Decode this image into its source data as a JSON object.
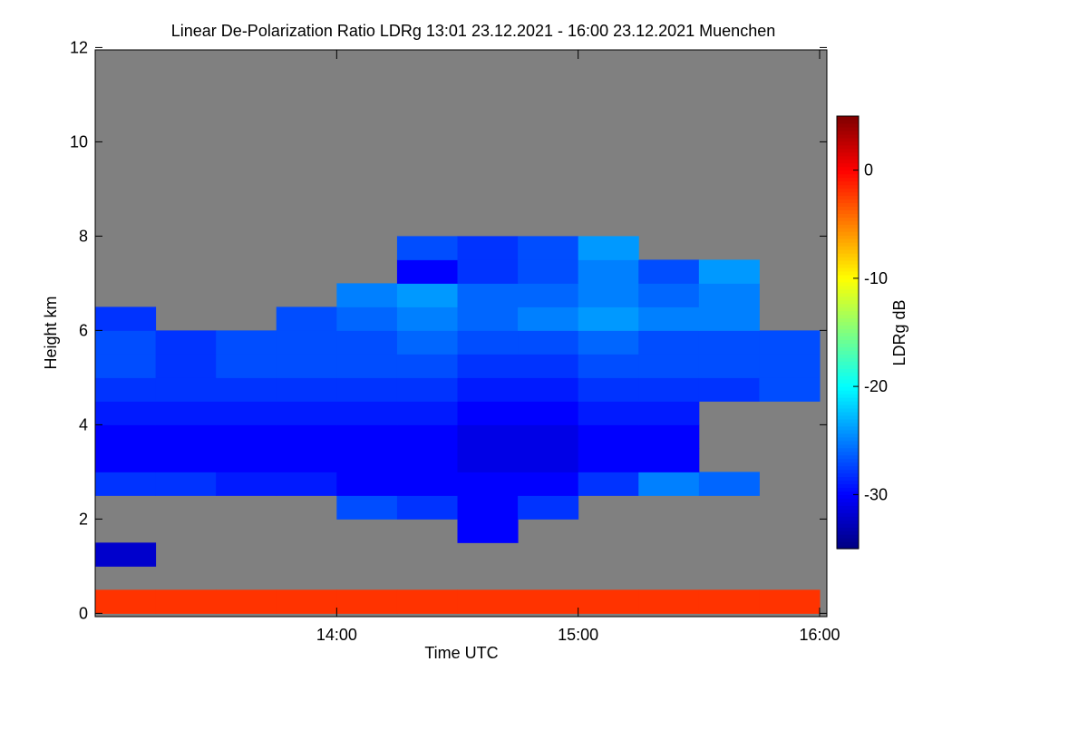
{
  "chart_data": {
    "type": "heatmap",
    "title": "Linear De-Polarization Ratio LDRg   13:01 23.12.2021 - 16:00 23.12.2021 Muenchen",
    "xlabel": "Time UTC",
    "ylabel": "Height km",
    "background": "#808080",
    "x": [
      13.125,
      13.375,
      13.625,
      13.875,
      14.125,
      14.375,
      14.625,
      14.875,
      15.125,
      15.375,
      15.625,
      15.875
    ],
    "y": [
      0.25,
      0.75,
      1.25,
      1.75,
      2.25,
      2.75,
      3.25,
      3.75,
      4.25,
      4.75,
      5.25,
      5.75,
      6.25,
      6.75,
      7.25,
      7.75
    ],
    "values": [
      [
        -2,
        -2,
        -2,
        -2,
        -2,
        -2,
        -2,
        -2,
        -2,
        -2,
        -2,
        -2
      ],
      [
        null,
        null,
        null,
        null,
        null,
        null,
        null,
        null,
        null,
        null,
        null,
        null
      ],
      [
        -32,
        null,
        null,
        null,
        null,
        null,
        null,
        null,
        null,
        null,
        null,
        null
      ],
      [
        null,
        null,
        null,
        null,
        null,
        null,
        -30,
        null,
        null,
        null,
        null,
        null
      ],
      [
        null,
        null,
        null,
        null,
        -27,
        -28,
        -30,
        -28,
        null,
        null,
        null,
        null
      ],
      [
        -28,
        -28,
        -29,
        -29,
        -30,
        -30,
        -30,
        -30,
        -28,
        -25,
        -26,
        null
      ],
      [
        -30,
        -30,
        -30,
        -30,
        -30,
        -30,
        -31,
        -31,
        -30,
        -30,
        null,
        null
      ],
      [
        -30,
        -30,
        -30,
        -30,
        -30,
        -30,
        -31,
        -31,
        -30,
        -30,
        null,
        null
      ],
      [
        -29,
        -29,
        -29,
        -29,
        -29,
        -29,
        -30,
        -30,
        -29,
        -29,
        null,
        null
      ],
      [
        -28,
        -28,
        -28,
        -28,
        -28,
        -28,
        -29,
        -29,
        -28,
        -28,
        -28,
        -27
      ],
      [
        -27,
        -28,
        -27,
        -27,
        -27,
        -27,
        -28,
        -28,
        -27,
        -27,
        -27,
        -27
      ],
      [
        -27,
        -28,
        -27,
        -27,
        -27,
        -26,
        -27,
        -27,
        -26,
        -27,
        -27,
        -27
      ],
      [
        -28,
        null,
        null,
        -27,
        -26,
        -25,
        -26,
        -25,
        -24,
        -25,
        -25,
        null
      ],
      [
        null,
        null,
        null,
        null,
        -25,
        -24,
        -26,
        -26,
        -25,
        -26,
        -25,
        null
      ],
      [
        null,
        null,
        null,
        null,
        null,
        -30,
        -28,
        -27,
        -25,
        -27,
        -24,
        null
      ],
      [
        null,
        null,
        null,
        null,
        null,
        -27,
        -28,
        -27,
        -24,
        null,
        null,
        null
      ]
    ],
    "xlim": [
      13.0,
      16.03
    ],
    "ylim": [
      -0.07,
      11.95
    ],
    "xticks": [
      {
        "value": 14,
        "label": "14:00"
      },
      {
        "value": 15,
        "label": "15:00"
      },
      {
        "value": 16,
        "label": "16:00"
      }
    ],
    "yticks": [
      0,
      2,
      4,
      6,
      8,
      10,
      12
    ],
    "colorbar": {
      "label": "LDRg dB",
      "colormap": "jet",
      "lim": [
        -35,
        5
      ],
      "ticks": [
        -30,
        -20,
        -10,
        0
      ]
    }
  }
}
